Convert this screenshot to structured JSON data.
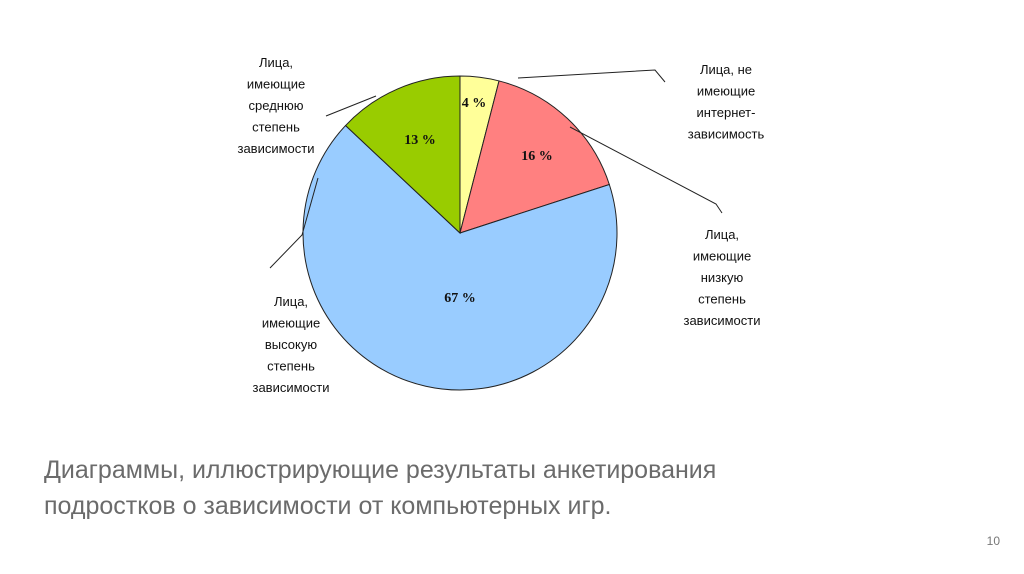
{
  "chart_data": {
    "type": "pie",
    "title": "",
    "slices": [
      {
        "label": "Лица, не имеющие интернет-зависимость",
        "label_lines": [
          "Лица, не",
          "имеющие",
          "интернет-",
          "зависимость"
        ],
        "value": 4,
        "value_label": "4 %",
        "color": "#ffff99"
      },
      {
        "label": "Лица, имеющие низкую степень зависимости",
        "label_lines": [
          "Лица,",
          "имеющие",
          "низкую",
          "степень",
          "зависимости"
        ],
        "value": 16,
        "value_label": "16 %",
        "color": "#ff8080"
      },
      {
        "label": "Лица, имеющие высокую степень зависимости",
        "label_lines": [
          "Лица,",
          "имеющие",
          "высокую",
          "степень",
          "зависимости"
        ],
        "value": 67,
        "value_label": "67 %",
        "color": "#99ccff"
      },
      {
        "label": "Лица, имеющие среднюю степень зависимости",
        "label_lines": [
          "Лица,",
          "имеющие",
          "среднюю",
          "степень",
          "зависимости"
        ],
        "value": 13,
        "value_label": "13 %",
        "color": "#99cc00"
      }
    ]
  },
  "caption": "Диаграммы, иллюстрирующие результаты анкетирования подростков о зависимости от компьютерных игр.",
  "page_number": "10"
}
